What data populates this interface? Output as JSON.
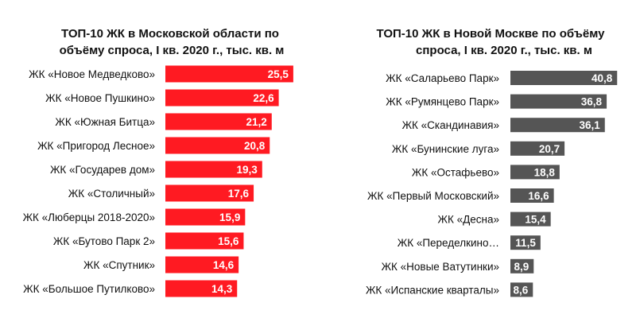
{
  "chart_data": [
    {
      "type": "bar",
      "orientation": "horizontal",
      "title_lines": [
        "ТОП-10 ЖК в Московской области по",
        "объёму спроса, I кв. 2020 г., тыс. кв. м"
      ],
      "categories": [
        "ЖК «Новое Медведково»",
        "ЖК «Новое Пушкино»",
        "ЖК «Южная Битца»",
        "ЖК «Пригород Лесное»",
        "ЖК «Государев дом»",
        "ЖК «Столичный»",
        "ЖК «Люберцы 2018-2020»",
        "ЖК «Бутово Парк 2»",
        "ЖК «Спутник»",
        "ЖК «Большое Путилково»"
      ],
      "values": [
        25.5,
        22.6,
        21.2,
        20.8,
        19.3,
        17.6,
        15.9,
        15.6,
        14.6,
        14.3
      ],
      "value_labels": [
        "25,5",
        "22,6",
        "21,2",
        "20,8",
        "19,3",
        "17,6",
        "15,9",
        "15,6",
        "14,6",
        "14,3"
      ],
      "color": "#ff1a22",
      "xlabel": "",
      "ylabel": "",
      "grid": false
    },
    {
      "type": "bar",
      "orientation": "horizontal",
      "title_lines": [
        "ТОП-10 ЖК в Новой Москве по объёму",
        "спроса, I кв. 2020 г., тыс. кв. м"
      ],
      "categories": [
        "ЖК «Саларьево Парк»",
        "ЖК «Румянцево Парк»",
        "ЖК «Скандинавия»",
        "ЖК «Бунинские луга»",
        "ЖК «Остафьево»",
        "ЖК «Первый Московский»",
        "ЖК «Десна»",
        "ЖК «Переделкино…",
        "ЖК «Новые Ватутинки»",
        "ЖК «Испанские кварталы»"
      ],
      "values": [
        40.8,
        36.8,
        36.1,
        20.7,
        18.8,
        16.6,
        15.4,
        11.5,
        8.9,
        8.6
      ],
      "value_labels": [
        "40,8",
        "36,8",
        "36,1",
        "20,7",
        "18,8",
        "16,6",
        "15,4",
        "11,5",
        "8,9",
        "8,6"
      ],
      "color": "#555555",
      "xlabel": "",
      "ylabel": "",
      "grid": false
    }
  ]
}
